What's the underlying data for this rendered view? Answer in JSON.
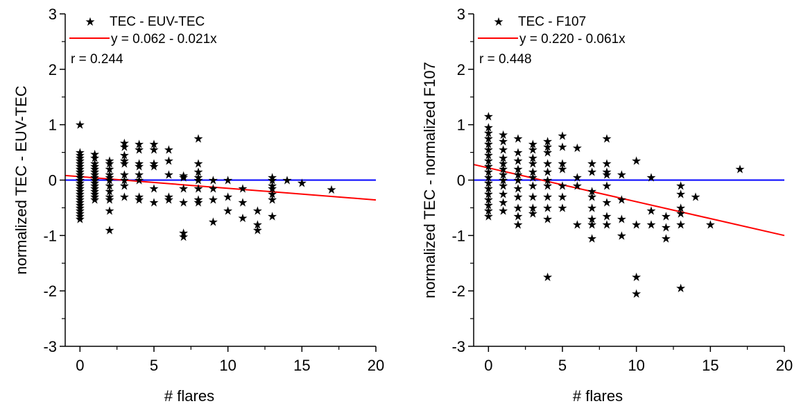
{
  "chart_data": [
    {
      "type": "scatter",
      "xlabel": "# flares",
      "ylabel": "normalized TEC - EUV-TEC",
      "xlim": [
        -1,
        20
      ],
      "ylim": [
        -3,
        3
      ],
      "xticks": [
        "0",
        "5",
        "10",
        "15",
        "20"
      ],
      "yticks": [
        "-3",
        "-2",
        "-1",
        "0",
        "1",
        "2",
        "3"
      ],
      "legend": {
        "placement": "top-left",
        "scatter_label": "TEC - EUV-TEC",
        "fit_label": "y = 0.062 - 0.021x",
        "correlation": "r = 0.244"
      },
      "fit": {
        "intercept": 0.062,
        "slope": -0.021,
        "color": "#ff0000",
        "x_range": [
          -1,
          20
        ]
      },
      "reference_line": {
        "y": 0,
        "color": "#0000ff"
      },
      "points": [
        [
          0,
          1.0
        ],
        [
          0,
          0.5
        ],
        [
          0,
          0.45
        ],
        [
          0,
          0.4
        ],
        [
          0,
          0.35
        ],
        [
          0,
          0.3
        ],
        [
          0,
          0.25
        ],
        [
          0,
          0.2
        ],
        [
          0,
          0.15
        ],
        [
          0,
          0.1
        ],
        [
          0,
          0.05
        ],
        [
          0,
          0.0
        ],
        [
          0,
          -0.05
        ],
        [
          0,
          -0.1
        ],
        [
          0,
          -0.15
        ],
        [
          0,
          -0.2
        ],
        [
          0,
          -0.25
        ],
        [
          0,
          -0.3
        ],
        [
          0,
          -0.35
        ],
        [
          0,
          -0.4
        ],
        [
          0,
          -0.45
        ],
        [
          0,
          -0.5
        ],
        [
          0,
          -0.55
        ],
        [
          0,
          -0.6
        ],
        [
          0,
          -0.65
        ],
        [
          0,
          -0.7
        ],
        [
          1,
          0.47
        ],
        [
          1,
          0.4
        ],
        [
          1,
          0.3
        ],
        [
          1,
          0.25
        ],
        [
          1,
          0.2
        ],
        [
          1,
          0.15
        ],
        [
          1,
          0.1
        ],
        [
          1,
          0.05
        ],
        [
          1,
          0.0
        ],
        [
          1,
          -0.05
        ],
        [
          1,
          -0.1
        ],
        [
          1,
          -0.15
        ],
        [
          1,
          -0.2
        ],
        [
          1,
          -0.25
        ],
        [
          1,
          -0.3
        ],
        [
          1,
          -0.35
        ],
        [
          2,
          0.35
        ],
        [
          2,
          0.3
        ],
        [
          2,
          0.2
        ],
        [
          2,
          0.1
        ],
        [
          2,
          0.05
        ],
        [
          2,
          0.0
        ],
        [
          2,
          -0.1
        ],
        [
          2,
          -0.2
        ],
        [
          2,
          -0.3
        ],
        [
          2,
          -0.35
        ],
        [
          2,
          -0.55
        ],
        [
          2,
          -0.9
        ],
        [
          3,
          0.67
        ],
        [
          3,
          0.6
        ],
        [
          3,
          0.45
        ],
        [
          3,
          0.35
        ],
        [
          3,
          0.3
        ],
        [
          3,
          0.1
        ],
        [
          3,
          0.0
        ],
        [
          3,
          -0.1
        ],
        [
          3,
          -0.3
        ],
        [
          4,
          0.65
        ],
        [
          4,
          0.55
        ],
        [
          4,
          0.3
        ],
        [
          4,
          0.25
        ],
        [
          4,
          0.1
        ],
        [
          4,
          0.0
        ],
        [
          4,
          -0.3
        ],
        [
          4,
          -0.35
        ],
        [
          5,
          0.65
        ],
        [
          5,
          0.55
        ],
        [
          5,
          0.3
        ],
        [
          5,
          0.25
        ],
        [
          5,
          -0.15
        ],
        [
          5,
          -0.4
        ],
        [
          6,
          0.55
        ],
        [
          6,
          0.35
        ],
        [
          6,
          0.1
        ],
        [
          6,
          -0.3
        ],
        [
          6,
          -0.35
        ],
        [
          7,
          0.08
        ],
        [
          7,
          0.05
        ],
        [
          7,
          -0.15
        ],
        [
          7,
          -0.4
        ],
        [
          7,
          -0.95
        ],
        [
          7,
          -1.02
        ],
        [
          8,
          0.75
        ],
        [
          8,
          0.3
        ],
        [
          8,
          0.15
        ],
        [
          8,
          0.05
        ],
        [
          8,
          0.0
        ],
        [
          8,
          -0.15
        ],
        [
          8,
          -0.35
        ],
        [
          8,
          -0.4
        ],
        [
          9,
          0.0
        ],
        [
          9,
          -0.15
        ],
        [
          9,
          -0.35
        ],
        [
          9,
          -0.75
        ],
        [
          10,
          0.0
        ],
        [
          10,
          -0.3
        ],
        [
          10,
          -0.55
        ],
        [
          11,
          -0.15
        ],
        [
          11,
          -0.4
        ],
        [
          11,
          -0.68
        ],
        [
          12,
          -0.55
        ],
        [
          12,
          -0.8
        ],
        [
          12,
          -0.9
        ],
        [
          13,
          0.05
        ],
        [
          13,
          0.0
        ],
        [
          13,
          -0.1
        ],
        [
          13,
          -0.15
        ],
        [
          13,
          -0.25
        ],
        [
          13,
          -0.35
        ],
        [
          13,
          -0.65
        ],
        [
          14,
          0.0
        ],
        [
          15,
          -0.05
        ],
        [
          17,
          -0.17
        ]
      ]
    },
    {
      "type": "scatter",
      "xlabel": "# flares",
      "ylabel": "normalized TEC - normalized F107",
      "xlim": [
        -1,
        20
      ],
      "ylim": [
        -3,
        3
      ],
      "xticks": [
        "0",
        "5",
        "10",
        "15",
        "20"
      ],
      "yticks": [
        "-3",
        "-2",
        "-1",
        "0",
        "1",
        "2",
        "3"
      ],
      "legend": {
        "placement": "top-left",
        "scatter_label": "TEC - F107",
        "fit_label": "y = 0.220 - 0.061x",
        "correlation": "r = 0.448"
      },
      "fit": {
        "intercept": 0.22,
        "slope": -0.061,
        "color": "#ff0000",
        "x_range": [
          -1,
          20
        ]
      },
      "reference_line": {
        "y": 0,
        "color": "#0000ff"
      },
      "points": [
        [
          0,
          1.15
        ],
        [
          0,
          0.95
        ],
        [
          0,
          0.85
        ],
        [
          0,
          0.75
        ],
        [
          0,
          0.65
        ],
        [
          0,
          0.55
        ],
        [
          0,
          0.45
        ],
        [
          0,
          0.35
        ],
        [
          0,
          0.25
        ],
        [
          0,
          0.15
        ],
        [
          0,
          0.05
        ],
        [
          0,
          -0.05
        ],
        [
          0,
          -0.15
        ],
        [
          0,
          -0.25
        ],
        [
          0,
          -0.35
        ],
        [
          0,
          -0.45
        ],
        [
          0,
          -0.55
        ],
        [
          0,
          -0.65
        ],
        [
          1,
          0.82
        ],
        [
          1,
          0.7
        ],
        [
          1,
          0.55
        ],
        [
          1,
          0.4
        ],
        [
          1,
          0.3
        ],
        [
          1,
          0.2
        ],
        [
          1,
          0.1
        ],
        [
          1,
          0.0
        ],
        [
          1,
          -0.1
        ],
        [
          1,
          -0.25
        ],
        [
          1,
          -0.4
        ],
        [
          1,
          -0.55
        ],
        [
          2,
          0.75
        ],
        [
          2,
          0.5
        ],
        [
          2,
          0.35
        ],
        [
          2,
          0.2
        ],
        [
          2,
          0.1
        ],
        [
          2,
          0.0
        ],
        [
          2,
          -0.15
        ],
        [
          2,
          -0.3
        ],
        [
          2,
          -0.5
        ],
        [
          2,
          -0.65
        ],
        [
          2,
          -0.8
        ],
        [
          3,
          0.65
        ],
        [
          3,
          0.55
        ],
        [
          3,
          0.4
        ],
        [
          3,
          0.3
        ],
        [
          3,
          0.15
        ],
        [
          3,
          0.05
        ],
        [
          3,
          -0.1
        ],
        [
          3,
          -0.3
        ],
        [
          3,
          -0.5
        ],
        [
          3,
          -0.6
        ],
        [
          4,
          0.7
        ],
        [
          4,
          0.6
        ],
        [
          4,
          0.5
        ],
        [
          4,
          0.3
        ],
        [
          4,
          0.15
        ],
        [
          4,
          0.0
        ],
        [
          4,
          -0.1
        ],
        [
          4,
          -0.3
        ],
        [
          4,
          -0.5
        ],
        [
          4,
          -0.7
        ],
        [
          4,
          -1.75
        ],
        [
          5,
          0.8
        ],
        [
          5,
          0.6
        ],
        [
          5,
          0.3
        ],
        [
          5,
          0.2
        ],
        [
          5,
          -0.1
        ],
        [
          5,
          -0.3
        ],
        [
          5,
          -0.5
        ],
        [
          6,
          0.58
        ],
        [
          6,
          0.05
        ],
        [
          6,
          -0.1
        ],
        [
          6,
          -0.8
        ],
        [
          7,
          0.3
        ],
        [
          7,
          0.15
        ],
        [
          7,
          -0.2
        ],
        [
          7,
          -0.3
        ],
        [
          7,
          -0.5
        ],
        [
          7,
          -0.7
        ],
        [
          7,
          -0.8
        ],
        [
          7,
          -1.05
        ],
        [
          8,
          0.75
        ],
        [
          8,
          0.3
        ],
        [
          8,
          0.15
        ],
        [
          8,
          0.1
        ],
        [
          8,
          -0.1
        ],
        [
          8,
          -0.4
        ],
        [
          8,
          -0.65
        ],
        [
          8,
          -0.8
        ],
        [
          9,
          0.1
        ],
        [
          9,
          -0.35
        ],
        [
          9,
          -0.7
        ],
        [
          9,
          -1.0
        ],
        [
          10,
          0.35
        ],
        [
          10,
          -0.8
        ],
        [
          10,
          -1.75
        ],
        [
          10,
          -2.05
        ],
        [
          11,
          0.05
        ],
        [
          11,
          -0.55
        ],
        [
          11,
          -0.8
        ],
        [
          12,
          -0.65
        ],
        [
          12,
          -0.85
        ],
        [
          12,
          -1.05
        ],
        [
          13,
          -0.1
        ],
        [
          13,
          -0.25
        ],
        [
          13,
          -0.5
        ],
        [
          13,
          -0.6
        ],
        [
          13,
          -0.8
        ],
        [
          13,
          -1.95
        ],
        [
          14,
          -0.3
        ],
        [
          15,
          -0.8
        ],
        [
          17,
          0.2
        ]
      ]
    }
  ]
}
